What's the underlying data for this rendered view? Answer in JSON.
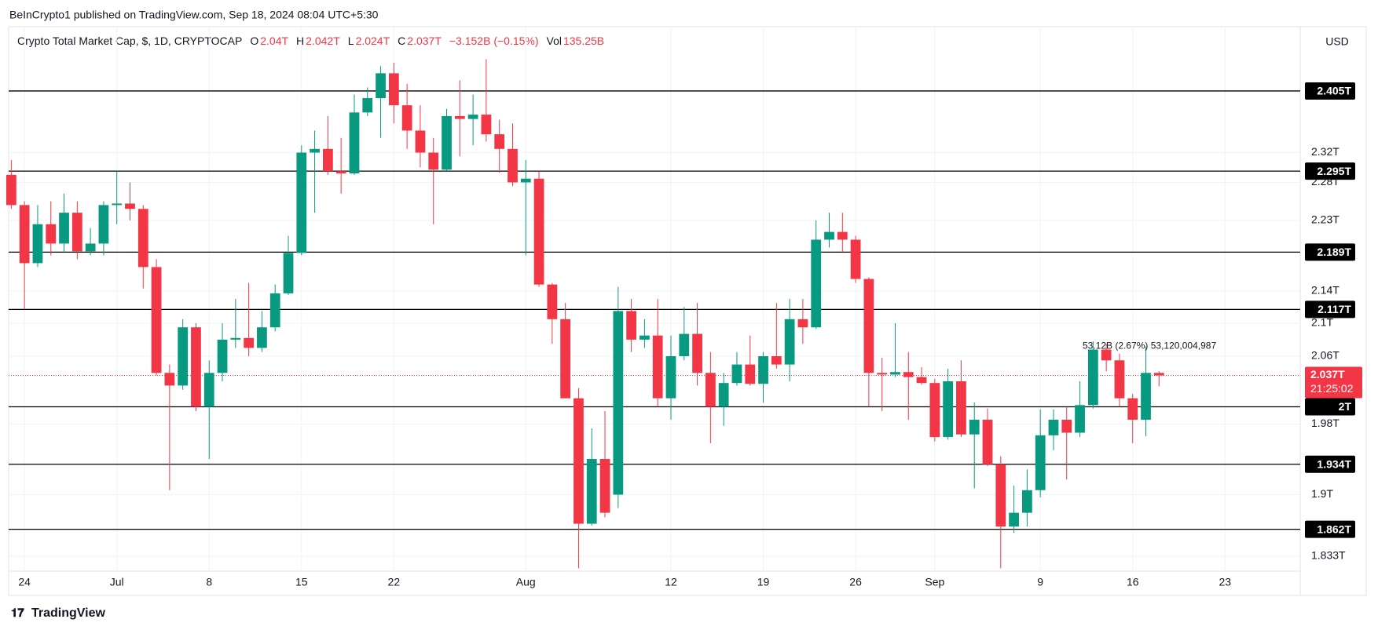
{
  "header": {
    "publisher": "BeInCrypto1 published on TradingView.com, Sep 18, 2024 08:04 UTC+5:30",
    "brand": "TradingView"
  },
  "chart_data": {
    "type": "candlestick",
    "legend": {
      "name": "Crypto Total Market Cap, $, 1D, CRYPTOCAP",
      "items": [
        {
          "key": "O",
          "value": "2.04T"
        },
        {
          "key": "H",
          "value": "2.042T"
        },
        {
          "key": "L",
          "value": "2.024T"
        },
        {
          "key": "C",
          "value": "2.037T"
        }
      ],
      "change": "−3.152B (−0.15%)",
      "vol_key": "Vol",
      "vol": "135.25B"
    },
    "currency": "USD",
    "log_scale": true,
    "grid": true,
    "up_color": "#089981",
    "down_color": "#f23645",
    "open": [
      2.29,
      2.25,
      2.175,
      2.225,
      2.2,
      2.24,
      2.19,
      2.2,
      2.25,
      2.252,
      2.245,
      2.17,
      2.04,
      2.025,
      2.095,
      2.0,
      2.04,
      2.08,
      2.082,
      2.07,
      2.095,
      2.137,
      2.188,
      2.32,
      2.325,
      2.295,
      2.292,
      2.375,
      2.395,
      2.43,
      2.385,
      2.35,
      2.32,
      2.297,
      2.37,
      2.366,
      2.372,
      2.345,
      2.325,
      2.28,
      2.285,
      2.148,
      2.105,
      2.01,
      1.868,
      1.94,
      1.9,
      2.115,
      2.08,
      2.085,
      2.01,
      2.06,
      2.087,
      2.04,
      2.0,
      2.028,
      2.05,
      2.027,
      2.06,
      2.05,
      2.105,
      2.095,
      2.205,
      2.215,
      2.205,
      2.155,
      2.04,
      2.038,
      2.041,
      2.035,
      2.028,
      1.965,
      2.03,
      1.968,
      1.985,
      1.934,
      1.865,
      1.88,
      1.905,
      1.967,
      1.985,
      1.97,
      2.002,
      2.068,
      2.055,
      2.01,
      1.985,
      2.04
    ],
    "high": [
      2.31,
      2.255,
      2.25,
      2.255,
      2.265,
      2.255,
      2.22,
      2.255,
      2.295,
      2.28,
      2.25,
      2.18,
      2.05,
      2.105,
      2.1,
      2.055,
      2.1,
      2.13,
      2.15,
      2.115,
      2.148,
      2.21,
      2.33,
      2.35,
      2.37,
      2.34,
      2.4,
      2.41,
      2.44,
      2.445,
      2.415,
      2.385,
      2.34,
      2.38,
      2.42,
      2.4,
      2.45,
      2.365,
      2.36,
      2.31,
      2.295,
      2.15,
      2.125,
      2.022,
      1.975,
      1.995,
      2.145,
      2.13,
      2.105,
      2.13,
      2.085,
      2.12,
      2.125,
      2.065,
      2.04,
      2.065,
      2.085,
      2.065,
      2.125,
      2.13,
      2.13,
      2.23,
      2.24,
      2.24,
      2.21,
      2.157,
      2.058,
      2.1,
      2.065,
      2.047,
      2.033,
      2.045,
      2.055,
      2.005,
      1.998,
      1.943,
      1.91,
      1.928,
      1.997,
      1.997,
      2.0,
      2.03,
      2.078,
      2.075,
      2.063,
      2.015,
      2.072,
      2.042
    ],
    "low": [
      2.245,
      2.117,
      2.17,
      2.185,
      2.189,
      2.18,
      2.185,
      2.185,
      2.225,
      2.23,
      2.143,
      2.037,
      1.905,
      2.02,
      1.995,
      1.94,
      2.03,
      2.07,
      2.06,
      2.065,
      2.09,
      2.135,
      2.185,
      2.24,
      2.29,
      2.265,
      2.29,
      2.37,
      2.34,
      2.36,
      2.325,
      2.3,
      2.225,
      2.295,
      2.315,
      2.33,
      2.335,
      2.293,
      2.275,
      2.185,
      2.145,
      2.075,
      2.01,
      1.82,
      1.866,
      1.875,
      1.885,
      2.065,
      2.07,
      2.0,
      1.985,
      2.055,
      2.025,
      1.958,
      1.978,
      2.025,
      2.025,
      2.005,
      2.045,
      2.03,
      2.075,
      2.093,
      2.195,
      2.189,
      2.15,
      2.0,
      1.995,
      2.035,
      1.985,
      2.026,
      1.96,
      1.962,
      1.965,
      1.907,
      1.932,
      1.82,
      1.858,
      1.865,
      1.897,
      1.95,
      1.917,
      1.965,
      1.998,
      2.042,
      2.0,
      1.958,
      1.966,
      2.024
    ],
    "close": [
      2.25,
      2.175,
      2.225,
      2.2,
      2.24,
      2.19,
      2.2,
      2.25,
      2.252,
      2.245,
      2.17,
      2.04,
      2.025,
      2.095,
      2.0,
      2.04,
      2.08,
      2.082,
      2.07,
      2.095,
      2.137,
      2.188,
      2.32,
      2.325,
      2.295,
      2.292,
      2.375,
      2.395,
      2.43,
      2.385,
      2.35,
      2.32,
      2.297,
      2.37,
      2.366,
      2.372,
      2.345,
      2.325,
      2.28,
      2.285,
      2.148,
      2.105,
      2.01,
      1.868,
      1.94,
      1.88,
      2.115,
      2.08,
      2.085,
      2.01,
      2.06,
      2.087,
      2.04,
      2.0,
      2.028,
      2.05,
      2.027,
      2.06,
      2.05,
      2.105,
      2.095,
      2.205,
      2.215,
      2.205,
      2.155,
      2.04,
      2.038,
      2.041,
      2.035,
      2.028,
      1.965,
      2.03,
      1.968,
      1.985,
      1.934,
      1.865,
      1.88,
      1.905,
      1.967,
      1.985,
      1.97,
      2.002,
      2.068,
      2.055,
      2.01,
      1.985,
      2.04,
      2.037
    ],
    "xlim": [
      -0.2,
      97.7
    ],
    "xticks": [
      {
        "value": 1,
        "label": "24"
      },
      {
        "value": 8,
        "label": "Jul"
      },
      {
        "value": 15,
        "label": "8"
      },
      {
        "value": 22,
        "label": "15"
      },
      {
        "value": 29,
        "label": "22"
      },
      {
        "value": 39,
        "label": "Aug"
      },
      {
        "value": 50,
        "label": "12"
      },
      {
        "value": 57,
        "label": "19"
      },
      {
        "value": 64,
        "label": "26"
      },
      {
        "value": 70,
        "label": "Sep"
      },
      {
        "value": 78,
        "label": "9"
      },
      {
        "value": 85,
        "label": "16"
      },
      {
        "value": 92,
        "label": "23"
      }
    ],
    "ylim": [
      1.817,
      2.497
    ],
    "yticks": [
      {
        "value": 2.32,
        "label": "2.32T"
      },
      {
        "value": 2.28,
        "label": "2.28T"
      },
      {
        "value": 2.23,
        "label": "2.23T"
      },
      {
        "value": 2.14,
        "label": "2.14T"
      },
      {
        "value": 2.1,
        "label": "2.1T"
      },
      {
        "value": 2.06,
        "label": "2.06T"
      },
      {
        "value": 1.98,
        "label": "1.98T"
      },
      {
        "value": 1.9,
        "label": "1.9T"
      },
      {
        "value": 1.833,
        "label": "1.833T"
      }
    ],
    "levels": [
      {
        "value": 2.405,
        "label": "2.405T"
      },
      {
        "value": 2.295,
        "label": "2.295T"
      },
      {
        "value": 2.189,
        "label": "2.189T"
      },
      {
        "value": 2.117,
        "label": "2.117T"
      },
      {
        "value": 2,
        "label": "2T"
      },
      {
        "value": 1.934,
        "label": "1.934T"
      },
      {
        "value": 1.862,
        "label": "1.862T"
      }
    ],
    "last_price": {
      "value": 2.037,
      "label": "2.037T",
      "countdown": "21:25:02"
    },
    "annotation": "53.12B (2.67%) 53,120,004,987"
  }
}
